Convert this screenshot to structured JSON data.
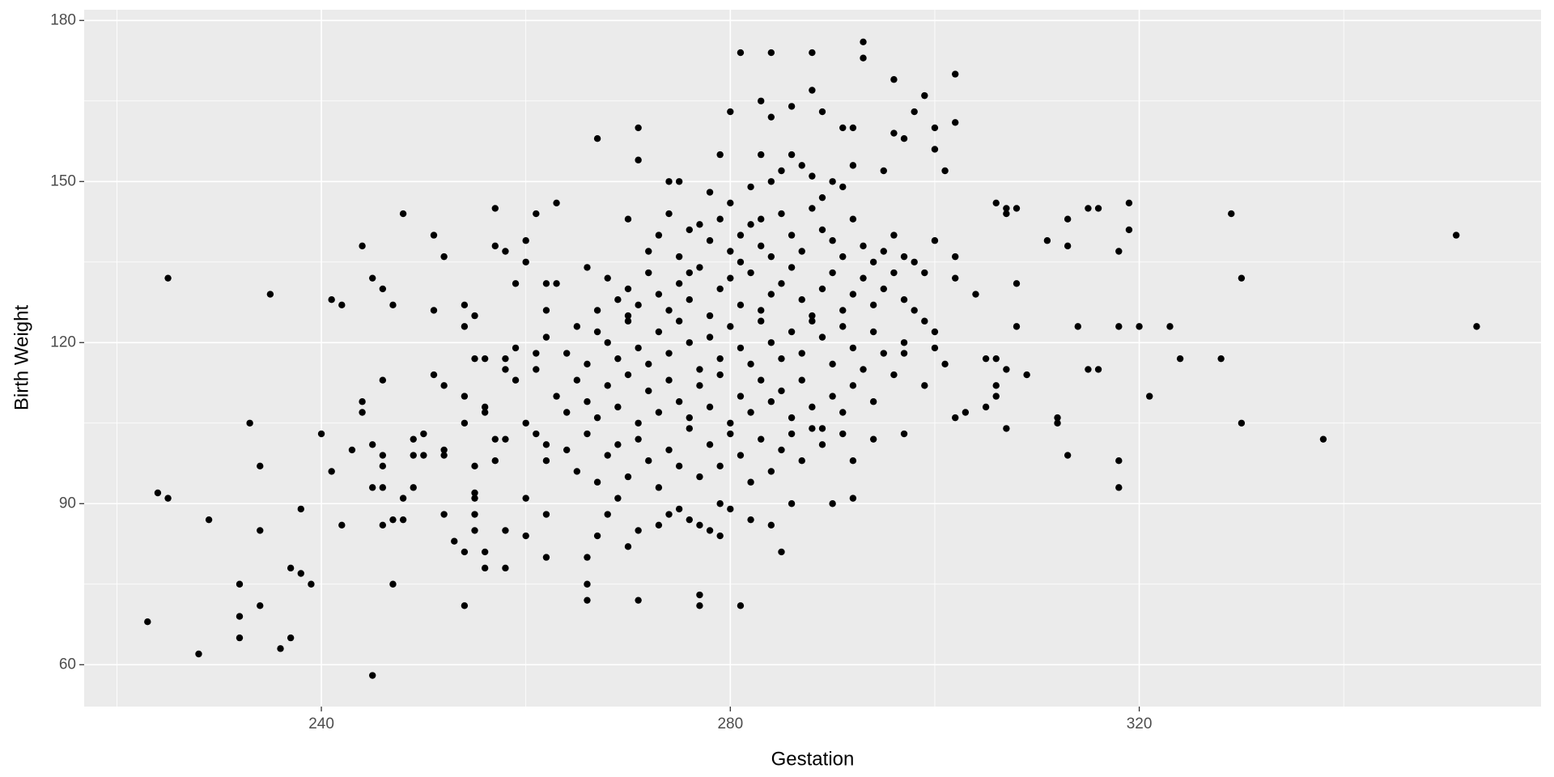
{
  "chart_data": {
    "type": "scatter",
    "x_label": "Gestation",
    "y_label": "Birth Weight",
    "xlim": [
      216.8,
      359.3
    ],
    "ylim": [
      52.2,
      182
    ],
    "xticks": [
      240,
      280,
      320
    ],
    "yticks": [
      60,
      90,
      120,
      150,
      180
    ],
    "x_minor_grid": [
      220,
      260,
      300,
      340
    ],
    "y_minor_grid": [
      75,
      105,
      135,
      165
    ],
    "grid": true,
    "color": "#000000",
    "x": [
      223,
      224,
      225,
      225,
      228,
      229,
      232,
      232,
      232,
      233,
      234,
      234,
      234,
      235,
      236,
      237,
      237,
      238,
      238,
      239,
      240,
      241,
      241,
      242,
      242,
      243,
      244,
      244,
      244,
      245,
      245,
      245,
      245,
      246,
      246,
      246,
      246,
      246,
      246,
      247,
      247,
      247,
      248,
      248,
      248,
      249,
      249,
      249,
      250,
      250,
      251,
      251,
      251,
      252,
      252,
      252,
      252,
      252,
      253,
      254,
      254,
      254,
      254,
      254,
      254,
      255,
      255,
      255,
      255,
      255,
      255,
      255,
      256,
      256,
      256,
      256,
      256,
      257,
      257,
      257,
      257,
      258,
      258,
      258,
      258,
      258,
      258,
      259,
      259,
      259,
      260,
      260,
      260,
      260,
      260,
      261,
      261,
      261,
      261,
      262,
      262,
      262,
      262,
      262,
      262,
      263,
      263,
      267,
      271,
      271,
      271,
      266,
      266,
      277,
      277,
      281,
      284,
      288,
      293,
      293,
      296,
      299,
      302,
      302,
      283,
      280,
      284,
      286,
      288,
      289,
      291,
      292,
      300,
      300,
      301,
      306,
      307,
      308,
      307,
      311,
      313,
      313,
      314,
      315,
      316,
      315,
      316,
      318,
      318,
      319,
      319,
      320,
      321,
      323,
      324,
      328,
      329,
      330,
      330,
      338,
      351,
      353,
      318,
      318,
      312,
      312,
      313,
      309,
      307,
      308,
      308,
      306,
      306,
      306,
      305,
      307,
      305,
      304,
      302,
      302,
      300,
      299,
      300,
      302,
      303,
      301,
      299,
      297,
      297,
      292,
      292,
      290,
      286,
      285,
      284,
      282,
      281,
      279,
      278,
      280,
      282,
      284,
      285,
      286,
      287,
      288,
      289,
      290,
      291,
      292,
      295,
      297,
      296,
      298,
      283,
      279,
      274,
      275,
      270,
      273,
      274,
      276,
      277,
      278,
      279,
      280,
      281,
      282,
      283,
      284,
      285,
      286,
      287,
      288,
      289,
      290,
      291,
      292,
      293,
      294,
      295,
      296,
      297,
      298,
      272,
      275,
      281,
      283,
      266,
      268,
      269,
      270,
      271,
      272,
      273,
      274,
      275,
      276,
      277,
      278,
      279,
      280,
      281,
      282,
      283,
      284,
      285,
      286,
      287,
      288,
      289,
      290,
      291,
      292,
      293,
      294,
      295,
      296,
      297,
      298,
      267,
      270,
      276,
      262,
      264,
      265,
      266,
      267,
      268,
      269,
      270,
      271,
      272,
      273,
      274,
      275,
      276,
      277,
      278,
      279,
      280,
      281,
      282,
      283,
      284,
      285,
      286,
      287,
      288,
      289,
      290,
      291,
      292,
      293,
      294,
      295,
      297,
      299,
      300,
      263,
      264,
      265,
      266,
      267,
      268,
      269,
      270,
      271,
      272,
      273,
      274,
      275,
      276,
      277,
      278,
      279,
      280,
      281,
      282,
      283,
      284,
      285,
      286,
      287,
      288,
      289,
      290,
      291,
      292,
      294,
      296,
      264,
      265,
      266,
      267,
      268,
      269,
      270,
      271,
      272,
      273,
      274,
      275,
      276,
      277,
      278,
      279,
      280,
      281,
      282,
      283,
      284,
      285,
      286,
      287,
      288,
      289,
      291,
      294,
      267,
      268,
      270,
      271,
      273,
      274,
      275,
      276,
      277,
      278,
      279,
      280,
      269,
      266
    ],
    "values": [
      68,
      92,
      91,
      132,
      62,
      87,
      75,
      69,
      65,
      105,
      97,
      85,
      71,
      129,
      63,
      78,
      65,
      89,
      77,
      75,
      103,
      128,
      96,
      127,
      86,
      100,
      138,
      109,
      107,
      132,
      101,
      93,
      58,
      130,
      113,
      99,
      97,
      93,
      86,
      127,
      87,
      75,
      144,
      91,
      87,
      102,
      99,
      93,
      103,
      99,
      140,
      126,
      114,
      136,
      112,
      100,
      99,
      88,
      83,
      127,
      123,
      110,
      105,
      81,
      71,
      125,
      117,
      97,
      92,
      91,
      88,
      85,
      117,
      108,
      107,
      81,
      78,
      145,
      138,
      102,
      98,
      137,
      117,
      115,
      102,
      85,
      78,
      131,
      119,
      113,
      135,
      139,
      105,
      91,
      84,
      144,
      118,
      115,
      103,
      131,
      126,
      101,
      98,
      88,
      80,
      146,
      131,
      158,
      160,
      154,
      72,
      75,
      72,
      73,
      71,
      174,
      174,
      174,
      176,
      173,
      169,
      166,
      170,
      161,
      165,
      163,
      162,
      164,
      167,
      163,
      160,
      160,
      160,
      156,
      152,
      146,
      145,
      145,
      144,
      139,
      143,
      138,
      123,
      115,
      115,
      145,
      145,
      137,
      123,
      146,
      141,
      123,
      110,
      123,
      117,
      117,
      144,
      132,
      105,
      102,
      140,
      123,
      98,
      93,
      106,
      105,
      99,
      114,
      104,
      123,
      131,
      117,
      110,
      112,
      108,
      115,
      117,
      129,
      136,
      132,
      139,
      133,
      122,
      106,
      107,
      116,
      112,
      118,
      103,
      98,
      91,
      90,
      90,
      81,
      86,
      87,
      71,
      84,
      148,
      146,
      149,
      150,
      152,
      155,
      153,
      151,
      147,
      150,
      149,
      153,
      152,
      158,
      159,
      163,
      155,
      155,
      150,
      150,
      143,
      140,
      144,
      141,
      142,
      139,
      143,
      137,
      140,
      142,
      138,
      136,
      144,
      140,
      137,
      145,
      141,
      139,
      136,
      143,
      138,
      135,
      137,
      140,
      136,
      135,
      137,
      136,
      135,
      143,
      134,
      132,
      128,
      130,
      127,
      133,
      129,
      126,
      131,
      128,
      134,
      125,
      130,
      132,
      127,
      133,
      126,
      129,
      131,
      134,
      128,
      125,
      130,
      133,
      126,
      129,
      132,
      127,
      130,
      133,
      128,
      126,
      126,
      125,
      133,
      121,
      118,
      123,
      116,
      122,
      120,
      117,
      124,
      119,
      116,
      122,
      118,
      124,
      120,
      115,
      121,
      117,
      123,
      119,
      116,
      124,
      120,
      117,
      122,
      118,
      124,
      121,
      116,
      123,
      119,
      115,
      122,
      118,
      120,
      124,
      119,
      110,
      107,
      113,
      109,
      106,
      112,
      108,
      114,
      105,
      111,
      107,
      113,
      109,
      106,
      112,
      108,
      114,
      105,
      110,
      107,
      113,
      109,
      111,
      106,
      113,
      108,
      104,
      110,
      107,
      112,
      109,
      114,
      100,
      96,
      103,
      94,
      99,
      101,
      95,
      102,
      98,
      93,
      100,
      97,
      104,
      95,
      101,
      97,
      103,
      99,
      94,
      102,
      96,
      100,
      103,
      98,
      104,
      101,
      103,
      102,
      84,
      88,
      82,
      85,
      86,
      88,
      89,
      87,
      86,
      85,
      90,
      89,
      91,
      80
    ]
  }
}
